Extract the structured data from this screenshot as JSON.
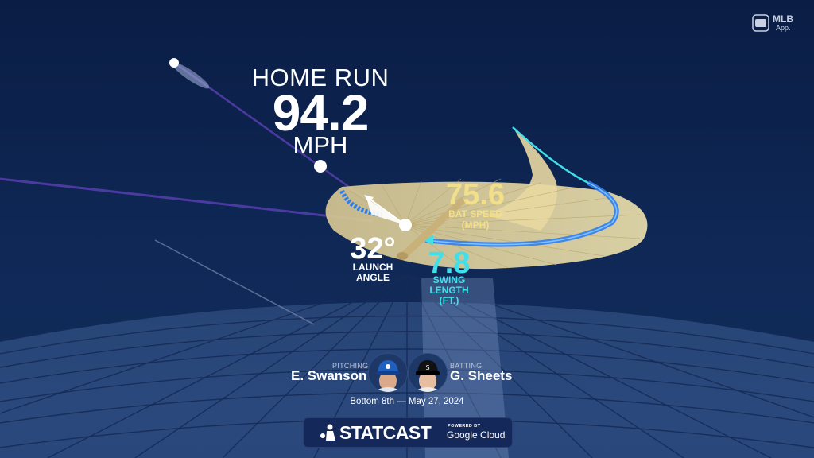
{
  "outcome": "HOME RUN",
  "exit_velocity": {
    "value": "94.2",
    "unit": "MPH"
  },
  "bat_speed": {
    "value": "75.6",
    "label": "BAT SPEED",
    "unit": "(MPH)"
  },
  "swing_length": {
    "value": "7.8",
    "label_1": "SWING",
    "label_2": "LENGTH",
    "unit": "(FT.)"
  },
  "launch_angle": {
    "value": "32°",
    "label": "LAUNCH",
    "label_2": "ANGLE"
  },
  "matchup": {
    "pitching_label": "PITCHING",
    "pitcher": "E. Swanson",
    "batting_label": "BATTING",
    "batter": "G. Sheets",
    "when": "Bottom 8th — May 27, 2024"
  },
  "branding": {
    "statcast": "STATCAST",
    "powered_by": "POWERED BY",
    "google_cloud": "Google Cloud",
    "mlb": "MLB",
    "app": "App."
  },
  "icons": [
    "mlb-app-logo-icon",
    "statcast-batter-icon",
    "blue-jays-cap-icon",
    "white-sox-cap-icon"
  ],
  "colors": {
    "background": "#0c1f45",
    "bat_speed": "#f2df8a",
    "swing_length": "#3fe0ea",
    "swing_path": "#2f7ef0",
    "trajectory": "#4b3aa0"
  }
}
